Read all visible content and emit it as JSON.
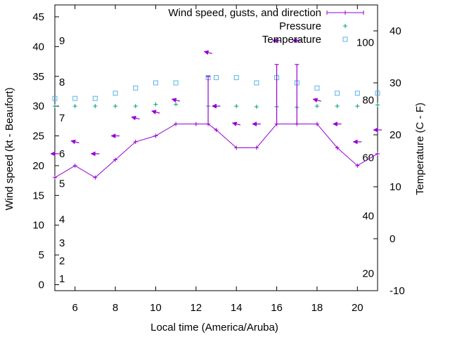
{
  "chart_data": {
    "type": "line",
    "title": "",
    "xlabel": "Local time (America/Aruba)",
    "ylabel": "Wind speed (kt - Beaufort)",
    "y2label": "Temperature (C - F)",
    "xlim": [
      5,
      21
    ],
    "ylim": [
      -1,
      47
    ],
    "y2lim": [
      -10,
      45
    ],
    "grid": false,
    "legend_position": "top-right",
    "x_ticks": [
      6,
      8,
      10,
      12,
      14,
      16,
      18,
      20
    ],
    "y_ticks": [
      0,
      5,
      10,
      15,
      20,
      25,
      30,
      35,
      40,
      45
    ],
    "y2_ticks": [
      -10,
      0,
      10,
      20,
      30,
      40
    ],
    "beaufort_labels": [
      {
        "label": "1",
        "y": 1
      },
      {
        "label": "2",
        "y": 4
      },
      {
        "label": "3",
        "y": 7
      },
      {
        "label": "4",
        "y": 11
      },
      {
        "label": "5",
        "y": 17
      },
      {
        "label": "6",
        "y": 22
      },
      {
        "label": "7",
        "y": 28
      },
      {
        "label": "8",
        "y": 34
      },
      {
        "label": "9",
        "y": 41
      }
    ],
    "fahrenheit_labels": [
      {
        "label": "20",
        "y2": -6.7
      },
      {
        "label": "40",
        "y2": 4.4
      },
      {
        "label": "60",
        "y2": 15.6
      },
      {
        "label": "80",
        "y2": 26.7
      },
      {
        "label": "100",
        "y2": 37.8
      }
    ],
    "series": [
      {
        "name": "Wind speed, gusts, and direction",
        "color": "#9400d3",
        "x": [
          5,
          6,
          7,
          8,
          9,
          10,
          11,
          12,
          12.6,
          13,
          14,
          15,
          16,
          17,
          18,
          19,
          20,
          21
        ],
        "values": [
          18,
          20,
          18,
          21,
          24,
          25,
          27,
          27,
          27,
          26,
          23,
          23,
          27,
          27,
          27,
          23,
          20,
          22
        ],
        "gusts": [
          {
            "x": 12.6,
            "low": 27,
            "high": 35
          },
          {
            "x": 16,
            "low": 27,
            "high": 37
          },
          {
            "x": 17,
            "low": 27,
            "high": 37
          }
        ],
        "direction_arrows": [
          {
            "x": 5,
            "y": 22,
            "dir": "left"
          },
          {
            "x": 6,
            "y": 24,
            "dir": "up-left"
          },
          {
            "x": 7,
            "y": 22,
            "dir": "left"
          },
          {
            "x": 8,
            "y": 25,
            "dir": "left"
          },
          {
            "x": 9,
            "y": 28,
            "dir": "up-left"
          },
          {
            "x": 10,
            "y": 29,
            "dir": "up-left"
          },
          {
            "x": 11,
            "y": 31,
            "dir": "up-left"
          },
          {
            "x": 12.6,
            "y": 39,
            "dir": "up-left"
          },
          {
            "x": 13,
            "y": 30,
            "dir": "left"
          },
          {
            "x": 14,
            "y": 27,
            "dir": "up-left"
          },
          {
            "x": 15,
            "y": 27,
            "dir": "left"
          },
          {
            "x": 16,
            "y": 41,
            "dir": "left"
          },
          {
            "x": 17,
            "y": 41,
            "dir": "left"
          },
          {
            "x": 18,
            "y": 31,
            "dir": "up-left"
          },
          {
            "x": 19,
            "y": 27,
            "dir": "left"
          },
          {
            "x": 20,
            "y": 24,
            "dir": "left"
          },
          {
            "x": 21,
            "y": 26,
            "dir": "left"
          }
        ]
      },
      {
        "name": "Pressure",
        "color": "#009e73",
        "x": [
          5,
          6,
          7,
          8,
          9,
          10,
          11,
          12.6,
          13,
          14,
          15,
          16,
          17,
          18,
          19,
          20,
          21
        ],
        "values": [
          30,
          30,
          30,
          30,
          30,
          30.3,
          30.3,
          30,
          30,
          30,
          29.9,
          29.9,
          29.8,
          30,
          30,
          30,
          30.2
        ]
      },
      {
        "name": "Temperature",
        "color": "#56b4e9",
        "axis": "y2",
        "x": [
          5,
          6,
          7,
          8,
          9,
          10,
          11,
          12.6,
          13,
          14,
          15,
          16,
          17,
          18,
          19,
          20,
          21
        ],
        "values": [
          27,
          27,
          27,
          28,
          29,
          30,
          30,
          31,
          31,
          31,
          30,
          31,
          30,
          29,
          28,
          28,
          28
        ]
      }
    ]
  }
}
